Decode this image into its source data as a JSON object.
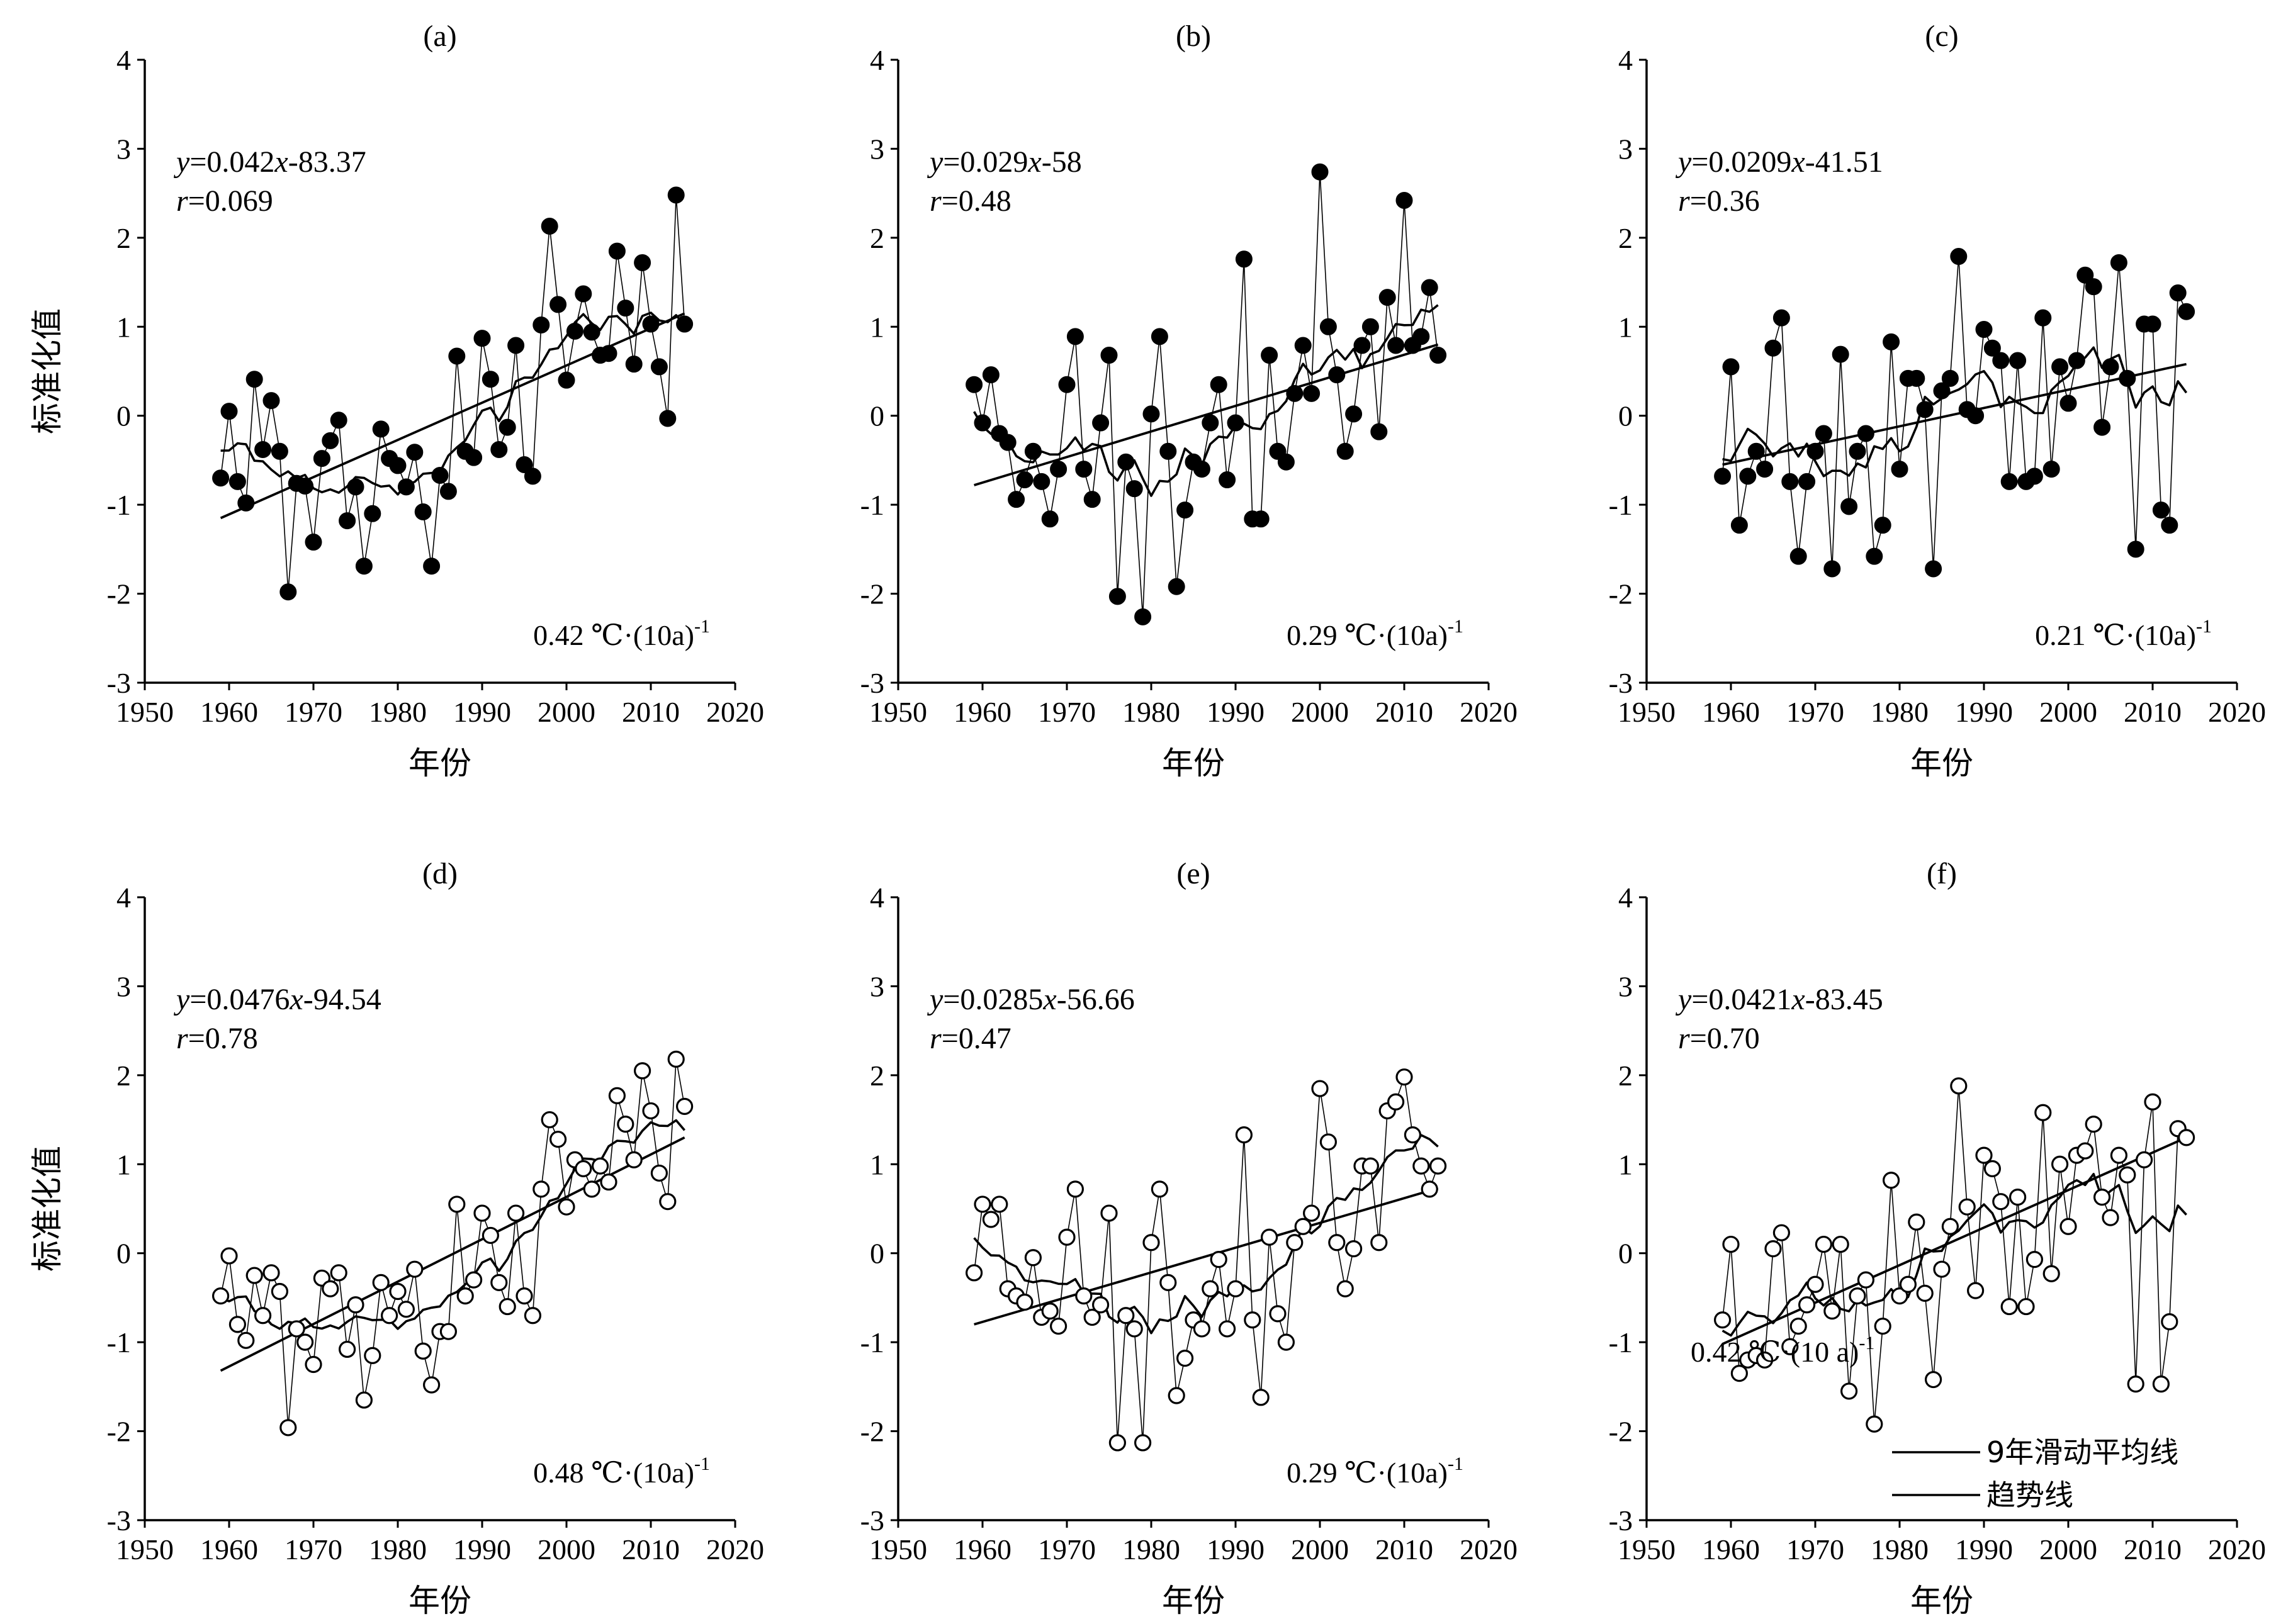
{
  "figure": {
    "ylabel": "标准化值",
    "xlabel": "年份",
    "x_ticks": [
      1950,
      1960,
      1970,
      1980,
      1990,
      2000,
      2010,
      2020
    ],
    "y_ticks": [
      4,
      3,
      2,
      1,
      0,
      -1,
      -2,
      -3
    ],
    "legend": [
      {
        "label": "9年滑动平均线"
      },
      {
        "label": "趋势线"
      }
    ]
  },
  "chart_data": [
    {
      "panel": "(a)",
      "type": "scatter",
      "marker": "filled",
      "xlim": [
        1950,
        2020
      ],
      "ylim": [
        -3,
        4
      ],
      "equation_y": "y",
      "equation_rest": "=0.042",
      "equation_x": "x",
      "equation_tail": "-83.37",
      "r_symbol": "r",
      "r_value": "=0.069",
      "rate_value": "0.42 ℃·(10a)",
      "rate_exp": "-1",
      "x_start": 1959,
      "values": [
        -0.7,
        0.05,
        -0.74,
        -0.98,
        0.41,
        -0.38,
        0.17,
        -0.4,
        -1.98,
        -0.76,
        -0.79,
        -1.42,
        -0.48,
        -0.28,
        -0.05,
        -1.18,
        -0.8,
        -1.69,
        -1.1,
        -0.15,
        -0.48,
        -0.56,
        -0.8,
        -0.41,
        -1.08,
        -1.69,
        -0.67,
        -0.85,
        0.67,
        -0.4,
        -0.47,
        0.87,
        0.41,
        -0.38,
        -0.13,
        0.79,
        -0.55,
        -0.68,
        1.02,
        2.13,
        1.25,
        0.4,
        0.95,
        1.37,
        0.94,
        0.68,
        0.7,
        1.85,
        1.21,
        0.58,
        1.72,
        1.03,
        0.55,
        -0.03,
        2.48,
        1.03
      ],
      "trend": {
        "x": [
          1959,
          2014
        ],
        "y": [
          -1.15,
          1.15
        ]
      }
    },
    {
      "panel": "(b)",
      "type": "scatter",
      "marker": "filled",
      "xlim": [
        1950,
        2020
      ],
      "ylim": [
        -3,
        4
      ],
      "equation_y": "y",
      "equation_rest": "=0.029",
      "equation_x": "x",
      "equation_tail": "-58",
      "r_symbol": "r",
      "r_value": "=0.48",
      "rate_value": "0.29 ℃·(10a)",
      "rate_exp": "-1",
      "x_start": 1959,
      "values": [
        0.35,
        -0.08,
        0.46,
        -0.2,
        -0.3,
        -0.94,
        -0.72,
        -0.4,
        -0.74,
        -1.16,
        -0.6,
        0.35,
        0.89,
        -0.6,
        -0.94,
        -0.08,
        0.68,
        -2.03,
        -0.52,
        -0.82,
        -2.26,
        0.02,
        0.89,
        -0.4,
        -1.92,
        -1.06,
        -0.52,
        -0.6,
        -0.08,
        0.35,
        -0.72,
        -0.08,
        1.76,
        -1.16,
        -1.16,
        0.68,
        -0.4,
        -0.52,
        0.25,
        0.79,
        0.25,
        2.74,
        1.0,
        0.46,
        -0.4,
        0.02,
        0.79,
        1.0,
        -0.18,
        1.33,
        0.79,
        2.42,
        0.79,
        0.89,
        1.44,
        0.68
      ],
      "trend": {
        "x": [
          1959,
          2014
        ],
        "y": [
          -0.78,
          0.8
        ]
      }
    },
    {
      "panel": "(c)",
      "type": "scatter",
      "marker": "filled",
      "xlim": [
        1950,
        2020
      ],
      "ylim": [
        -3,
        4
      ],
      "equation_y": "y",
      "equation_rest": "=0.0209",
      "equation_x": "x",
      "equation_tail": "-41.51",
      "r_symbol": "r",
      "r_value": "=0.36",
      "rate_value": "0.21 ℃·(10a)",
      "rate_exp": "-1",
      "x_start": 1959,
      "values": [
        -0.68,
        0.55,
        -1.23,
        -0.68,
        -0.4,
        -0.6,
        0.76,
        1.1,
        -0.74,
        -1.58,
        -0.74,
        -0.4,
        -0.2,
        -1.72,
        0.69,
        -1.02,
        -0.4,
        -0.2,
        -1.58,
        -1.23,
        0.83,
        -0.6,
        0.42,
        0.42,
        0.07,
        -1.72,
        0.28,
        0.42,
        1.79,
        0.07,
        0.0,
        0.97,
        0.76,
        0.62,
        -0.74,
        0.62,
        -0.74,
        -0.68,
        1.1,
        -0.6,
        0.55,
        0.14,
        0.62,
        1.58,
        1.45,
        -0.13,
        0.55,
        1.72,
        0.42,
        -1.5,
        1.03,
        1.03,
        -1.06,
        -1.23,
        1.38,
        1.17
      ],
      "trend": {
        "x": [
          1959,
          2014
        ],
        "y": [
          -0.55,
          0.58
        ]
      }
    },
    {
      "panel": "(d)",
      "type": "scatter",
      "marker": "open",
      "xlim": [
        1950,
        2020
      ],
      "ylim": [
        -3,
        4
      ],
      "equation_y": "y",
      "equation_rest": "=0.0476",
      "equation_x": "x",
      "equation_tail": "-94.54",
      "r_symbol": "r",
      "r_value": "=0.78",
      "rate_value": "0.48 ℃·(10a)",
      "rate_exp": "-1",
      "x_start": 1959,
      "values": [
        -0.48,
        -0.03,
        -0.8,
        -0.98,
        -0.25,
        -0.7,
        -0.22,
        -0.43,
        -1.96,
        -0.85,
        -1.0,
        -1.25,
        -0.28,
        -0.4,
        -0.22,
        -1.08,
        -0.58,
        -1.65,
        -1.15,
        -0.33,
        -0.7,
        -0.43,
        -0.63,
        -0.18,
        -1.1,
        -1.48,
        -0.88,
        -0.88,
        0.55,
        -0.48,
        -0.3,
        0.45,
        0.2,
        -0.33,
        -0.6,
        0.45,
        -0.48,
        -0.7,
        0.72,
        1.5,
        1.28,
        0.52,
        1.05,
        0.95,
        0.72,
        0.98,
        0.8,
        1.77,
        1.45,
        1.05,
        2.05,
        1.6,
        0.9,
        0.58,
        2.18,
        1.65
      ],
      "trend": {
        "x": [
          1959,
          2014
        ],
        "y": [
          -1.32,
          1.3
        ]
      }
    },
    {
      "panel": "(e)",
      "type": "scatter",
      "marker": "open",
      "xlim": [
        1950,
        2020
      ],
      "ylim": [
        -3,
        4
      ],
      "equation_y": "y",
      "equation_rest": "=0.0285",
      "equation_x": "x",
      "equation_tail": "-56.66",
      "r_symbol": "r",
      "r_value": "=0.47",
      "rate_value": "0.29 ℃·(10a)",
      "rate_exp": "-1",
      "x_start": 1959,
      "values": [
        -0.22,
        0.55,
        0.38,
        0.55,
        -0.4,
        -0.48,
        -0.55,
        -0.05,
        -0.72,
        -0.65,
        -0.82,
        0.18,
        0.72,
        -0.48,
        -0.72,
        -0.58,
        0.45,
        -2.13,
        -0.7,
        -0.85,
        -2.13,
        0.12,
        0.72,
        -0.33,
        -1.6,
        -1.18,
        -0.75,
        -0.85,
        -0.4,
        -0.07,
        -0.85,
        -0.4,
        1.33,
        -0.75,
        -1.62,
        0.18,
        -0.68,
        -1.0,
        0.12,
        0.3,
        0.45,
        1.85,
        1.25,
        0.12,
        -0.4,
        0.05,
        0.98,
        0.98,
        0.12,
        1.6,
        1.7,
        1.98,
        1.33,
        0.98,
        0.72,
        0.98
      ],
      "trend": {
        "x": [
          1959,
          2014
        ],
        "y": [
          -0.8,
          0.73
        ]
      }
    },
    {
      "panel": "(f)",
      "type": "scatter",
      "marker": "open",
      "xlim": [
        1950,
        2020
      ],
      "ylim": [
        -3,
        4
      ],
      "equation_y": "y",
      "equation_rest": "=0.0421",
      "equation_x": "x",
      "equation_tail": "-83.45",
      "r_symbol": "r",
      "r_value": "=0.70",
      "rate_value": "0.42 ℃·(10 a)",
      "rate_exp": "-1",
      "x_start": 1959,
      "values": [
        -0.75,
        0.1,
        -1.35,
        -1.2,
        -1.15,
        -1.2,
        0.05,
        0.23,
        -1.05,
        -0.82,
        -0.58,
        -0.35,
        0.1,
        -0.65,
        0.1,
        -1.55,
        -0.48,
        -0.3,
        -1.92,
        -0.82,
        0.82,
        -0.48,
        -0.35,
        0.35,
        -0.45,
        -1.42,
        -0.18,
        0.3,
        1.88,
        0.52,
        -0.42,
        1.1,
        0.95,
        0.58,
        -0.6,
        0.63,
        -0.6,
        -0.07,
        1.58,
        -0.23,
        1.0,
        0.3,
        1.1,
        1.15,
        1.45,
        0.63,
        0.4,
        1.1,
        0.88,
        -1.47,
        1.05,
        1.7,
        -1.47,
        -0.77,
        1.4,
        1.3
      ],
      "trend": {
        "x": [
          1959,
          2014
        ],
        "y": [
          -1.02,
          1.3
        ]
      }
    }
  ]
}
